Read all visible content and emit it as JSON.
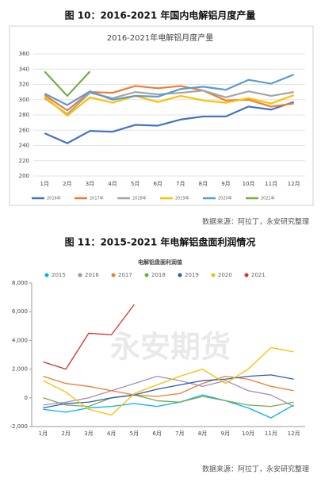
{
  "chart_data": [
    {
      "type": "line",
      "heading": "图 10：2016-2021 年国内电解铝月度产量",
      "title": "2016-2021年电解铝月度产量",
      "categories": [
        "1月",
        "2月",
        "3月",
        "4月",
        "5月",
        "6月",
        "7月",
        "8月",
        "9月",
        "10月",
        "11月",
        "12月"
      ],
      "ylim": [
        200,
        360
      ],
      "yticks": [
        200,
        220,
        240,
        260,
        280,
        300,
        320,
        340,
        360
      ],
      "grid": true,
      "series": [
        {
          "name": "2016年",
          "color": "#4472c4",
          "values": [
            256,
            243,
            259,
            258,
            267,
            266,
            274,
            278,
            278,
            291,
            287,
            297
          ]
        },
        {
          "name": "2017年",
          "color": "#ed7d31",
          "values": [
            306,
            286,
            310,
            309,
            318,
            315,
            318,
            312,
            299,
            300,
            291,
            295
          ]
        },
        {
          "name": "2018年",
          "color": "#a5a5a5",
          "values": [
            302,
            281,
            309,
            302,
            310,
            307,
            309,
            312,
            303,
            311,
            305,
            310
          ]
        },
        {
          "name": "2019年",
          "color": "#ffc000",
          "values": [
            304,
            279,
            303,
            296,
            305,
            297,
            305,
            299,
            296,
            302,
            295,
            306
          ]
        },
        {
          "name": "2020年",
          "color": "#5b9bd5",
          "values": [
            308,
            293,
            311,
            300,
            305,
            304,
            314,
            317,
            313,
            326,
            321,
            333
          ]
        },
        {
          "name": "2021年",
          "color": "#70ad47",
          "values": [
            337,
            305,
            337,
            null,
            null,
            null,
            null,
            null,
            null,
            null,
            null,
            null
          ]
        }
      ],
      "source": "数据来源：阿拉丁，永安研究整理"
    },
    {
      "type": "line",
      "heading": "图 11：2015-2021 年电解铝盘面利润情况",
      "title": "电解铝盘面利润值",
      "watermark": "永安期货",
      "categories": [
        "1月",
        "2月",
        "3月",
        "4月",
        "5月",
        "6月",
        "7月",
        "8月",
        "9月",
        "10月",
        "11月",
        "12月"
      ],
      "ylim": [
        -2000,
        8000
      ],
      "yticks": [
        {
          "value": -2000,
          "label": "-2,000"
        },
        0,
        {
          "value": 2000,
          "label": "2,000"
        },
        {
          "value": 4000,
          "label": "4,000"
        },
        {
          "value": 6000,
          "label": "6,000"
        },
        {
          "value": 8000,
          "label": "8,000"
        }
      ],
      "grid": false,
      "series": [
        {
          "name": "2015",
          "color": "#00b0f0",
          "values": [
            -800,
            -1000,
            -700,
            -600,
            -400,
            -600,
            -300,
            200,
            -200,
            -700,
            -1400,
            -500
          ]
        },
        {
          "name": "2016",
          "color": "#a78bbd",
          "values": [
            -500,
            -300,
            0,
            500,
            1000,
            1500,
            1200,
            800,
            1200,
            500,
            200,
            -600
          ]
        },
        {
          "name": "2017",
          "color": "#ed7d31",
          "values": [
            1500,
            1000,
            800,
            500,
            200,
            100,
            300,
            1000,
            1500,
            1300,
            800,
            500
          ]
        },
        {
          "name": "2018",
          "color": "#70ad47",
          "values": [
            0,
            -500,
            -600,
            0,
            200,
            -200,
            -300,
            100,
            -200,
            -500,
            -600,
            -300
          ]
        },
        {
          "name": "2019",
          "color": "#2e5fb4",
          "values": [
            -700,
            -400,
            -300,
            0,
            200,
            600,
            900,
            1200,
            1300,
            1500,
            1600,
            1300
          ]
        },
        {
          "name": "2020",
          "color": "#f2c200",
          "values": [
            1200,
            400,
            -800,
            -1200,
            300,
            900,
            1500,
            2000,
            1000,
            2000,
            3500,
            3200
          ]
        },
        {
          "name": "2021",
          "color": "#d9302a",
          "values": [
            2500,
            2000,
            4500,
            4400,
            6500,
            null,
            null,
            null,
            null,
            null,
            null,
            null
          ]
        }
      ],
      "source": "数据来源：阿拉丁，永安研究整理"
    }
  ]
}
